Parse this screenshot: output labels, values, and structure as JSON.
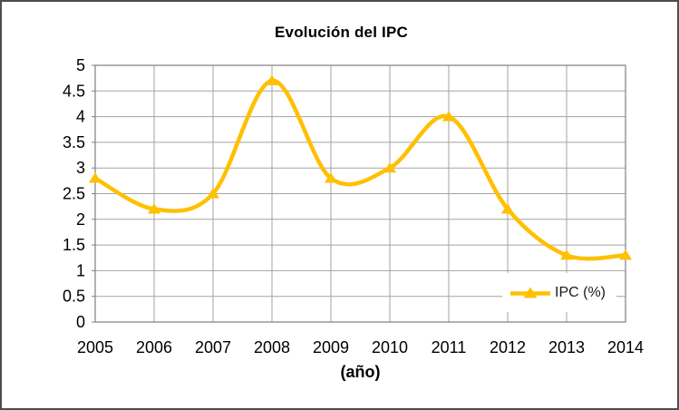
{
  "window": {
    "background": "#FFFFFF",
    "frame_border_color": "#4D4D4D"
  },
  "chart_data": {
    "type": "line",
    "title": "Evolución del IPC",
    "xlabel": "(año)",
    "ylabel": "",
    "categories": [
      "2005",
      "2006",
      "2007",
      "2008",
      "2009",
      "2010",
      "2011",
      "2012",
      "2013",
      "2014"
    ],
    "series": [
      {
        "name": "IPC (%)",
        "values": [
          2.8,
          2.2,
          2.5,
          4.7,
          2.8,
          3.0,
          4.0,
          2.2,
          1.3,
          1.3
        ],
        "color": "#FFC000",
        "marker": "triangle",
        "smooth": true
      }
    ],
    "ylim": [
      0,
      5
    ],
    "ytick_step": 0.5,
    "grid": true,
    "legend": {
      "label": "IPC (%)",
      "position": "inside-bottom-right"
    },
    "colors": {
      "line": "#FFC000",
      "gridline": "#A3A3A3",
      "axis": "#7F7F7F",
      "text": "#000000"
    }
  }
}
